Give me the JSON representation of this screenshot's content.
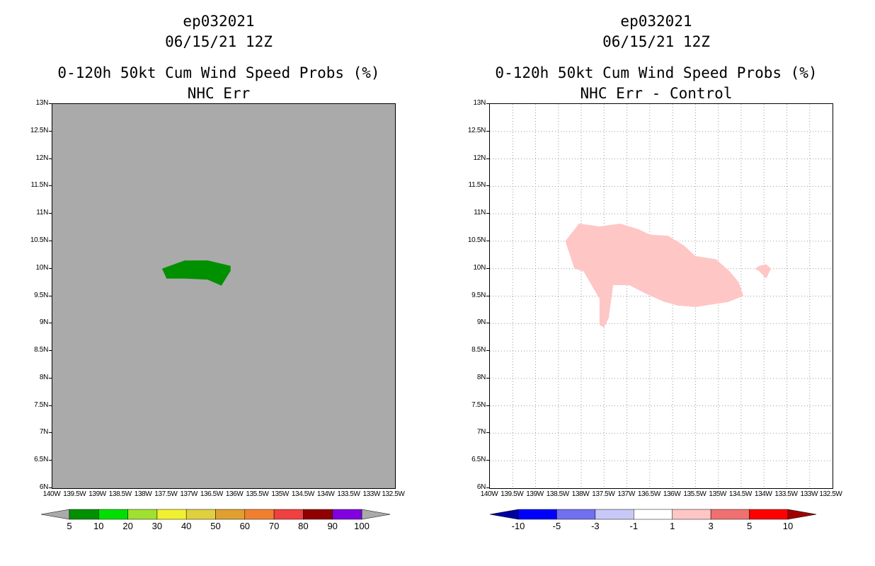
{
  "left": {
    "title_line1": "ep032021",
    "title_line2": "06/15/21 12Z",
    "title_line3": "0-120h 50kt Cum Wind Speed Probs (%)",
    "title_line4": "NHC Err",
    "background_color": "#aaaaaa",
    "features": [
      {
        "name": "probability-area-5-10",
        "color": "#009000",
        "polygon": [
          [
            -137.6,
            10.0
          ],
          [
            -137.1,
            10.15
          ],
          [
            -136.6,
            10.15
          ],
          [
            -136.1,
            10.05
          ],
          [
            -136.1,
            9.96
          ],
          [
            -136.3,
            9.69
          ],
          [
            -136.6,
            9.8
          ],
          [
            -137.1,
            9.82
          ],
          [
            -137.5,
            9.82
          ]
        ]
      }
    ],
    "colorbar": {
      "colors": [
        "#009000",
        "#00e000",
        "#a0e030",
        "#f0f030",
        "#e0d040",
        "#e0a030",
        "#f08030",
        "#f04040",
        "#900000",
        "#8000e0"
      ],
      "labels": [
        "5",
        "10",
        "20",
        "30",
        "40",
        "50",
        "60",
        "70",
        "80",
        "90",
        "100"
      ]
    }
  },
  "right": {
    "title_line1": "ep032021",
    "title_line2": "06/15/21 12Z",
    "title_line3": "0-120h 50kt Cum Wind Speed Probs (%)",
    "title_line4": "NHC Err - Control",
    "background_color": "#ffffff",
    "features": [
      {
        "name": "difference-area-1-3",
        "color": "#ffc6c6",
        "polygon": [
          [
            -138.35,
            10.5
          ],
          [
            -138.05,
            10.82
          ],
          [
            -137.6,
            10.77
          ],
          [
            -137.15,
            10.82
          ],
          [
            -136.75,
            10.72
          ],
          [
            -136.5,
            10.62
          ],
          [
            -136.1,
            10.6
          ],
          [
            -135.75,
            10.42
          ],
          [
            -135.5,
            10.23
          ],
          [
            -135.05,
            10.17
          ],
          [
            -134.75,
            9.95
          ],
          [
            -134.55,
            9.75
          ],
          [
            -134.45,
            9.5
          ],
          [
            -134.8,
            9.39
          ],
          [
            -135.5,
            9.3
          ],
          [
            -135.9,
            9.33
          ],
          [
            -136.2,
            9.4
          ],
          [
            -136.6,
            9.55
          ],
          [
            -136.95,
            9.7
          ],
          [
            -137.3,
            9.7
          ],
          [
            -137.4,
            9.1
          ],
          [
            -137.5,
            8.93
          ],
          [
            -137.6,
            8.97
          ],
          [
            -137.6,
            9.45
          ],
          [
            -137.95,
            9.95
          ],
          [
            -138.15,
            10.0
          ]
        ]
      },
      {
        "name": "difference-area-1-3-small",
        "color": "#ffc6c6",
        "polygon": [
          [
            -134.1,
            10.05
          ],
          [
            -133.95,
            10.08
          ],
          [
            -133.85,
            10.0
          ],
          [
            -133.95,
            9.82
          ],
          [
            -134.1,
            9.95
          ],
          [
            -134.2,
            10.0
          ]
        ]
      }
    ],
    "colorbar": {
      "colors": [
        "#0000a0",
        "#0000ff",
        "#7070f0",
        "#c8c8f8",
        "#ffffff",
        "#ffc6c6",
        "#f07070",
        "#ff0000",
        "#a00000"
      ],
      "labels": [
        "-10",
        "-5",
        "-3",
        "-1",
        "1",
        "3",
        "5",
        "10"
      ]
    }
  },
  "axes": {
    "lon_min": -140,
    "lon_max": -132.5,
    "lat_min": 6,
    "lat_max": 13,
    "x_ticks": [
      "140W",
      "139.5W",
      "139W",
      "138.5W",
      "138W",
      "137.5W",
      "137W",
      "136.5W",
      "136W",
      "135.5W",
      "135W",
      "134.5W",
      "134W",
      "133.5W",
      "133W",
      "132.5W"
    ],
    "y_ticks": [
      "6N",
      "6.5N",
      "7N",
      "7.5N",
      "8N",
      "8.5N",
      "9N",
      "9.5N",
      "10N",
      "10.5N",
      "11N",
      "11.5N",
      "12N",
      "12.5N",
      "13N"
    ]
  }
}
